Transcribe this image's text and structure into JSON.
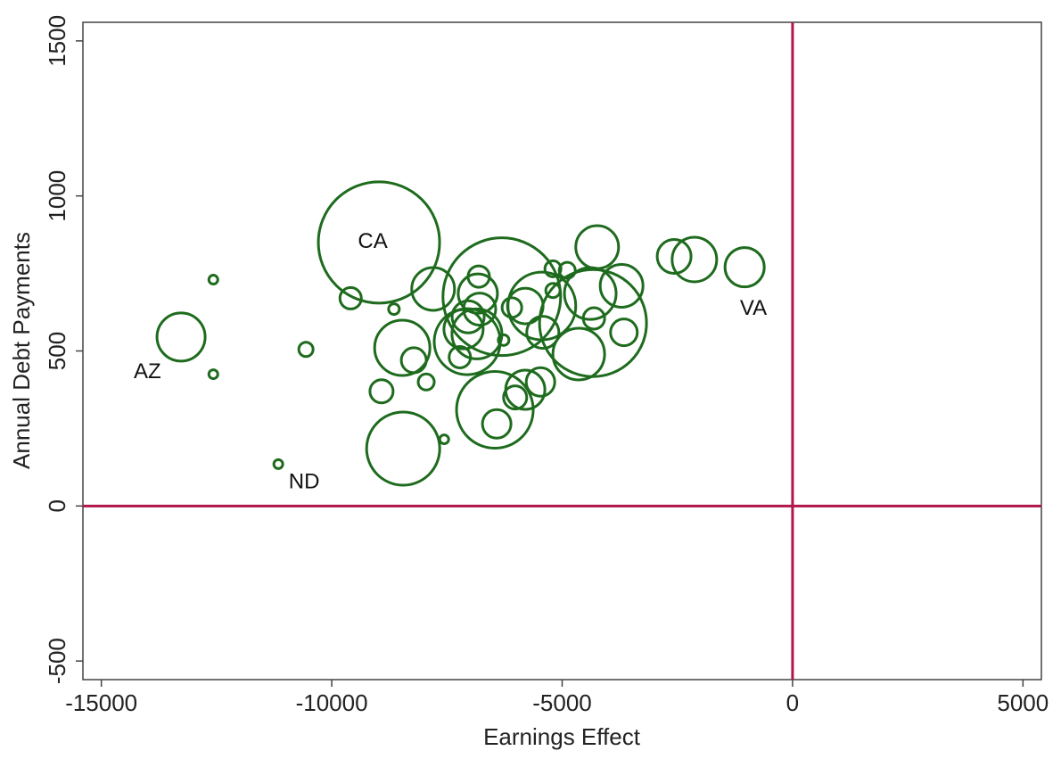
{
  "chart_data": {
    "type": "scatter",
    "x_label": "Earnings Effect",
    "y_label": "Annual Debt Payments",
    "xlim": [
      -15400,
      5400
    ],
    "ylim": [
      -560,
      1560
    ],
    "xticks": [
      -15000,
      -10000,
      -5000,
      0,
      5000
    ],
    "yticks": [
      -500,
      0,
      500,
      1000,
      1500
    ],
    "color": "#1e6b1e",
    "reference_lines": {
      "x": 0,
      "y": 0,
      "color": "#b0174a"
    },
    "x": [
      -8975,
      -13270,
      -12570,
      -12570,
      -11160,
      -10560,
      -9590,
      -8650,
      -8920,
      -8450,
      -8470,
      -8220,
      -7950,
      -7800,
      -7560,
      -6310,
      -6460,
      -6420,
      -7060,
      -7220,
      -7140,
      -7040,
      -6810,
      -6830,
      -6790,
      -6850,
      -6270,
      -6090,
      -5800,
      -6020,
      -5800,
      -5470,
      -5440,
      -5420,
      -5200,
      -5200,
      -4890,
      -4640,
      -4330,
      -4390,
      -4310,
      -4240,
      -3710,
      -3660,
      -2570,
      -2130,
      -1040
    ],
    "values": [
      850,
      545,
      730,
      425,
      135,
      505,
      670,
      635,
      370,
      185,
      510,
      470,
      400,
      700,
      215,
      675,
      310,
      265,
      530,
      480,
      570,
      610,
      740,
      685,
      635,
      555,
      535,
      640,
      645,
      350,
      375,
      400,
      645,
      560,
      765,
      695,
      760,
      490,
      590,
      685,
      605,
      835,
      710,
      560,
      805,
      795,
      770
    ],
    "sizes": [
      4624,
      729,
      25,
      25,
      25,
      64,
      144,
      36,
      169,
      1681,
      961,
      196,
      81,
      576,
      25,
      4356,
      1849,
      256,
      1369,
      144,
      484,
      324,
      144,
      484,
      324,
      784,
      36,
      121,
      400,
      169,
      484,
      256,
      1444,
      324,
      81,
      64,
      81,
      841,
      3600,
      841,
      144,
      576,
      576,
      225,
      361,
      625,
      484
    ],
    "annotations": [
      {
        "text": "CA",
        "x": -9110,
        "y": 850
      },
      {
        "text": "AZ",
        "x": -14000,
        "y": 430
      },
      {
        "text": "ND",
        "x": -10600,
        "y": 75
      },
      {
        "text": "VA",
        "x": -850,
        "y": 635
      }
    ]
  }
}
